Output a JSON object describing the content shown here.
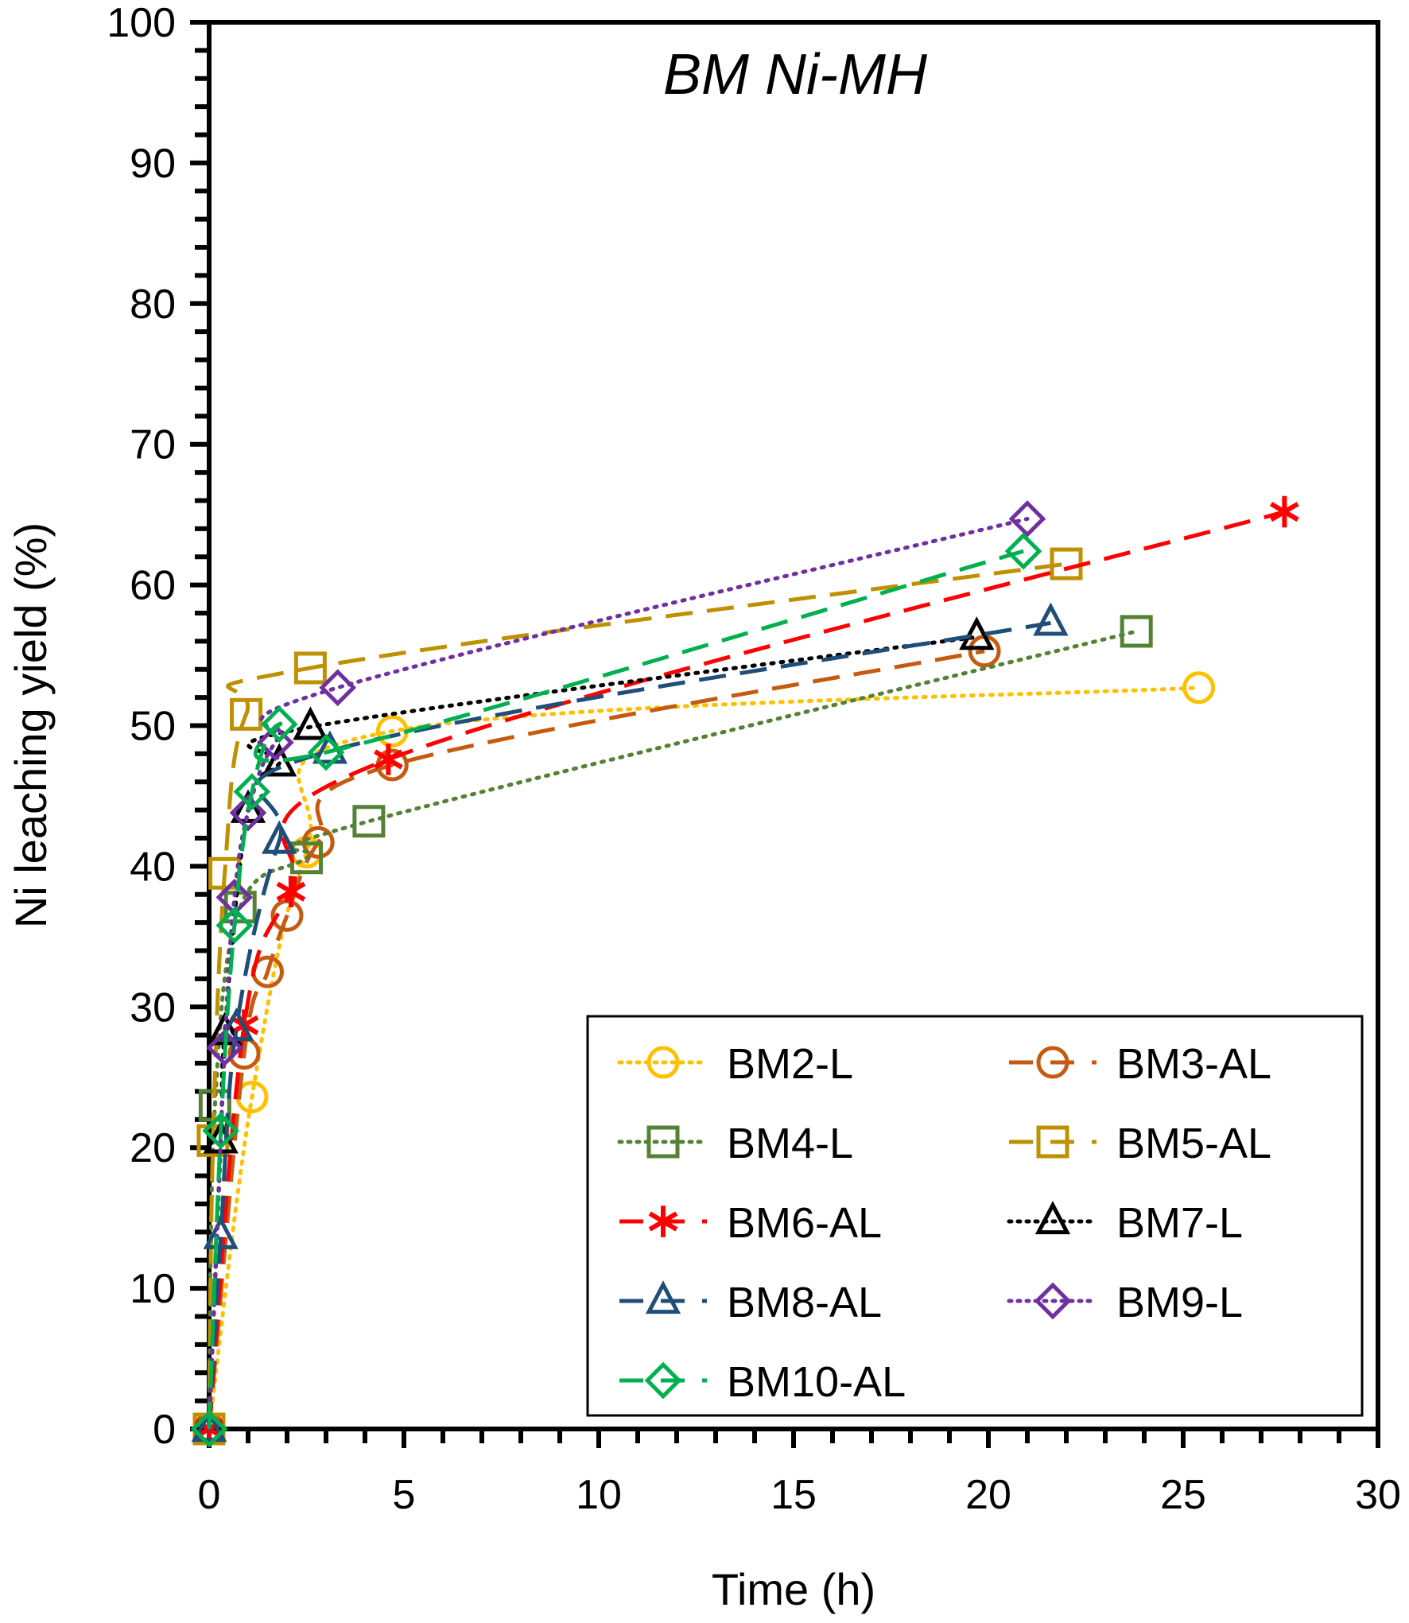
{
  "chart_data": {
    "type": "line",
    "title": "BM Ni-MH",
    "xlabel": "Time (h)",
    "ylabel": "Ni leaching yield (%)",
    "xlim": [
      0,
      30
    ],
    "ylim": [
      0,
      100
    ],
    "xticks": [
      "0",
      "5",
      "10",
      "15",
      "20",
      "25",
      "30"
    ],
    "yticks": [
      "0",
      "10",
      "20",
      "30",
      "40",
      "50",
      "60",
      "70",
      "80",
      "90",
      "100"
    ],
    "grid": false,
    "legend_position": "bottom-right",
    "series": [
      {
        "name": "BM2-L",
        "color": "#FFC000",
        "marker": "circle",
        "line": "dotted",
        "x": [
          0,
          1.1,
          2.5,
          4.7,
          25.4
        ],
        "y": [
          0,
          23.6,
          41.0,
          49.6,
          52.7
        ]
      },
      {
        "name": "BM3-AL",
        "color": "#C55A11",
        "marker": "circle",
        "line": "dashed",
        "x": [
          0,
          0.9,
          1.5,
          2.0,
          2.8,
          4.7,
          19.9
        ],
        "y": [
          0,
          26.7,
          32.5,
          36.5,
          41.7,
          47.2,
          55.3
        ]
      },
      {
        "name": "BM4-L",
        "color": "#548235",
        "marker": "square",
        "line": "dotted",
        "x": [
          0,
          0.15,
          0.8,
          2.5,
          4.1,
          23.8
        ],
        "y": [
          0,
          23.0,
          37.1,
          40.6,
          43.2,
          56.7
        ]
      },
      {
        "name": "BM5-AL",
        "color": "#BF9000",
        "marker": "square",
        "line": "dashed",
        "x": [
          0,
          0.1,
          0.4,
          0.95,
          2.6,
          22.0
        ],
        "y": [
          0,
          20.5,
          39.5,
          50.8,
          54.1,
          61.5
        ]
      },
      {
        "name": "BM6-AL",
        "color": "#FF0000",
        "marker": "asterisk",
        "line": "dashed",
        "x": [
          0,
          0.9,
          2.1,
          4.6,
          27.6
        ],
        "y": [
          0,
          28.7,
          38.2,
          47.6,
          65.2
        ]
      },
      {
        "name": "BM7-L",
        "color": "#000000",
        "marker": "triangle",
        "line": "dotted",
        "x": [
          0,
          0.3,
          0.4,
          1.0,
          1.8,
          2.6,
          19.7
        ],
        "y": [
          0,
          20.5,
          28.2,
          44.0,
          47.3,
          49.9,
          56.3
        ]
      },
      {
        "name": "BM8-AL",
        "color": "#1F4E79",
        "marker": "triangle",
        "line": "dashed",
        "x": [
          0,
          0.3,
          0.7,
          1.8,
          3.1,
          21.6
        ],
        "y": [
          0,
          13.7,
          28.5,
          41.8,
          48.2,
          57.3
        ]
      },
      {
        "name": "BM9-L",
        "color": "#7030A0",
        "marker": "diamond",
        "line": "dotted",
        "x": [
          0,
          0.4,
          0.65,
          1.0,
          1.7,
          3.3,
          21.0
        ],
        "y": [
          0,
          27.1,
          37.8,
          43.8,
          48.8,
          52.7,
          64.7
        ]
      },
      {
        "name": "BM10-AL",
        "color": "#00B050",
        "marker": "diamond",
        "line": "dashed",
        "x": [
          0,
          0.3,
          0.65,
          1.1,
          1.8,
          3.0,
          20.9
        ],
        "y": [
          0,
          21.2,
          35.8,
          45.3,
          50.1,
          48.1,
          62.4
        ]
      }
    ]
  }
}
